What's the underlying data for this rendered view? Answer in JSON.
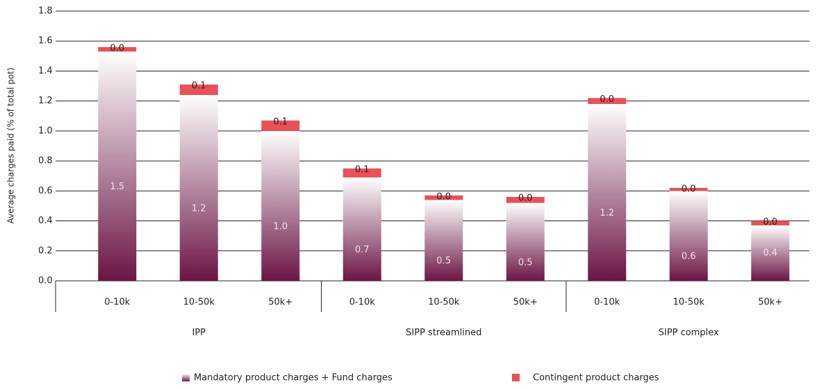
{
  "chart_data": {
    "type": "stacked-bar",
    "y_label": "Average charges paid (% of total pot)",
    "categories": [
      "0-10k",
      "10-50k",
      "50k+",
      "0-10k",
      "10-50k",
      "50k+",
      "0-10k",
      "10-50k",
      "50k+"
    ],
    "groups": [
      "IPP",
      "SIPP streamlined",
      "SIPP complex"
    ],
    "series": [
      {
        "name": "Mandatory product charges + Fund charges",
        "color": "#6b1444",
        "values": [
          1.53,
          1.24,
          1.0,
          0.69,
          0.54,
          0.52,
          1.18,
          0.6,
          0.37
        ],
        "value_labels": [
          "1.5",
          "1.2",
          "1.0",
          "0.7",
          "0.5",
          "0.5",
          "1.2",
          "0.6",
          "0.4"
        ]
      },
      {
        "name": "Contingent product charges",
        "color": "#e8515a",
        "values": [
          0.03,
          0.07,
          0.07,
          0.06,
          0.03,
          0.04,
          0.04,
          0.02,
          0.03
        ],
        "value_labels": [
          "0.0",
          "0.1",
          "0.1",
          "0.1",
          "0.0",
          "0.0",
          "0.0",
          "0.0",
          "0.0"
        ]
      }
    ],
    "ylim": [
      0,
      1.8
    ],
    "yticks": [
      {
        "value": 0,
        "label": "0.0"
      },
      0.2,
      0.4,
      0.6,
      0.8,
      {
        "value": 1,
        "label": "1.0"
      },
      1.2,
      1.4,
      1.6,
      1.8
    ],
    "grid": true
  }
}
